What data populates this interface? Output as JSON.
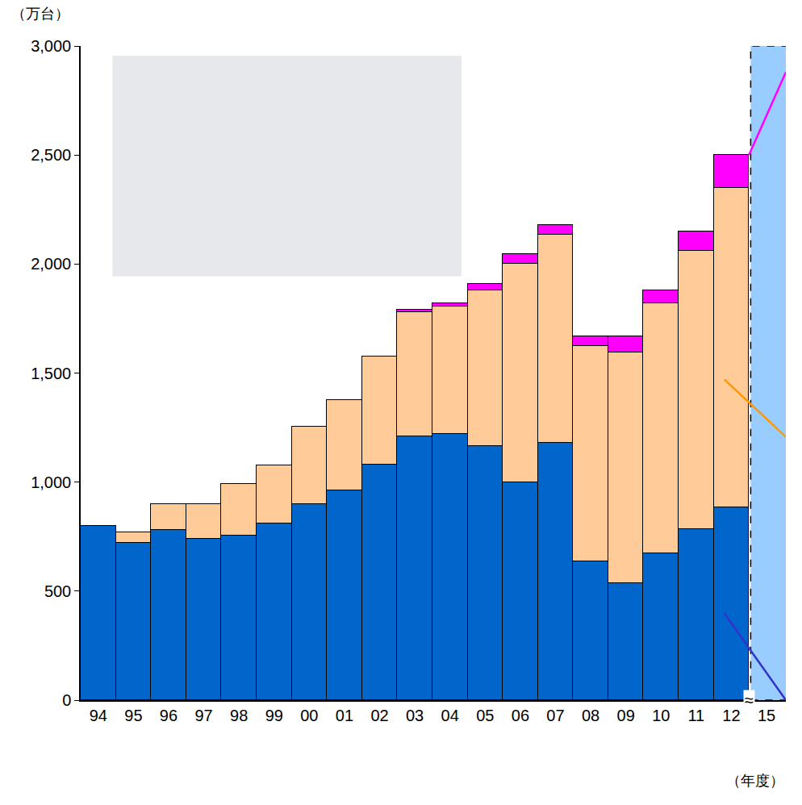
{
  "chart_data": {
    "type": "bar",
    "stacked": true,
    "grid": false,
    "x_label": "（年度）",
    "y_label": "（万台）",
    "categories": [
      "94",
      "95",
      "96",
      "97",
      "98",
      "99",
      "00",
      "01",
      "02",
      "03",
      "04",
      "05",
      "06",
      "07",
      "08",
      "09",
      "10",
      "11",
      "12",
      "15"
    ],
    "series": [
      {
        "color": "#0066CC",
        "values": [
          800,
          720,
          780,
          740,
          755,
          810,
          900,
          960,
          1080,
          1210,
          1220,
          1165,
          1000,
          1180,
          635,
          535,
          675,
          785,
          885,
          null
        ]
      },
      {
        "color": "#FFCC99",
        "values": [
          0,
          50,
          120,
          160,
          235,
          265,
          355,
          415,
          495,
          570,
          585,
          715,
          1000,
          955,
          990,
          1060,
          1145,
          1275,
          1465,
          null
        ]
      },
      {
        "color": "#FF00FF",
        "values": [
          0,
          0,
          0,
          0,
          0,
          0,
          0,
          0,
          0,
          10,
          15,
          30,
          45,
          45,
          45,
          75,
          60,
          90,
          150,
          null
        ]
      }
    ],
    "annotations": [
      {
        "text": "≈"
      }
    ],
    "ylim": [
      0,
      3000
    ],
    "yticks": [
      0,
      500,
      {
        "value": 1000,
        "label": "1,000"
      },
      {
        "value": 1500,
        "label": "1,500"
      },
      {
        "value": 2000,
        "label": "2,000"
      },
      {
        "value": 2500,
        "label": "2,500"
      },
      {
        "value": 3000,
        "label": "3,000"
      }
    ]
  }
}
